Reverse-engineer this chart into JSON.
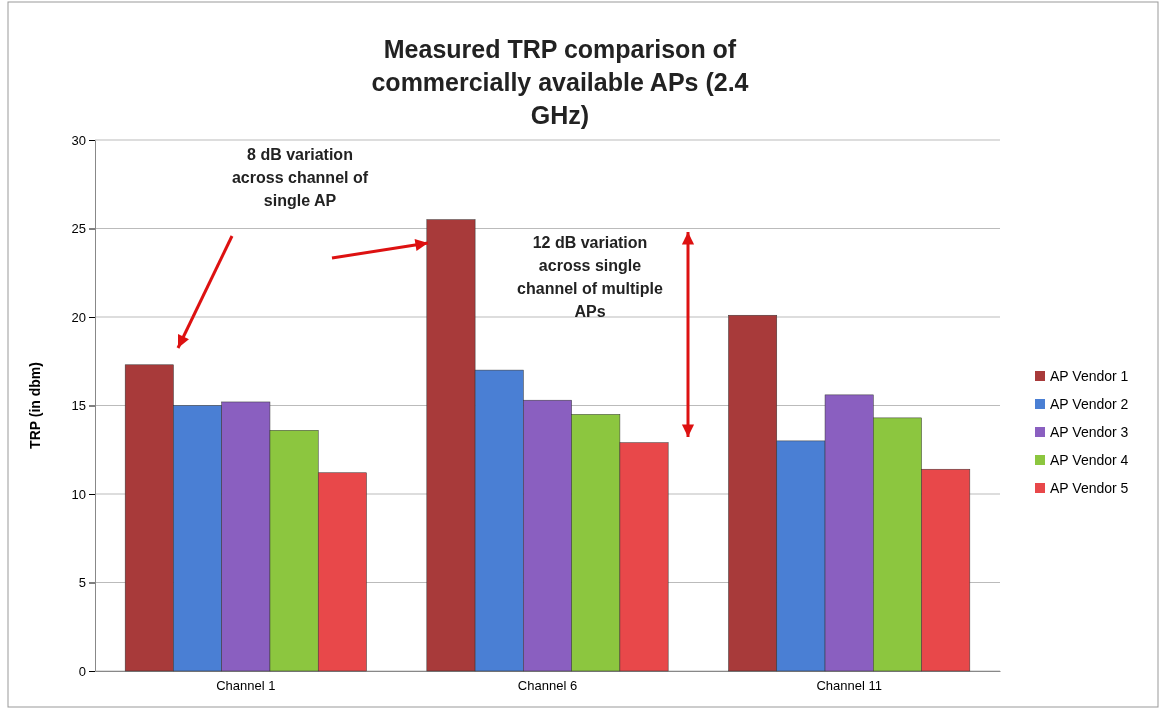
{
  "chart_data": {
    "type": "bar",
    "title": "Measured TRP comparison of commercially available APs (2.4 GHz)",
    "ylabel": "TRP (in dbm)",
    "categories": [
      "Channel 1",
      "Channel 6",
      "Channel 11"
    ],
    "series": [
      {
        "name": "AP Vendor 1",
        "color": "#a83a3a",
        "values": [
          17.3,
          25.5,
          20.1
        ]
      },
      {
        "name": "AP Vendor 2",
        "color": "#4a7fd4",
        "values": [
          15.0,
          17.0,
          13.0
        ]
      },
      {
        "name": "AP Vendor 3",
        "color": "#8a5fc0",
        "values": [
          15.2,
          15.3,
          15.6
        ]
      },
      {
        "name": "AP Vendor 4",
        "color": "#8cc63f",
        "values": [
          13.6,
          14.5,
          14.3
        ]
      },
      {
        "name": "AP Vendor 5",
        "color": "#e8484a",
        "values": [
          11.2,
          12.9,
          11.4
        ]
      }
    ],
    "ylim": [
      0,
      30
    ],
    "yticks": [
      0,
      5,
      10,
      15,
      20,
      25,
      30
    ],
    "grid": "y",
    "legend": "right",
    "annotations": [
      "8 dB variation across channel of single AP",
      "12 dB variation across single channel of multiple APs"
    ]
  }
}
